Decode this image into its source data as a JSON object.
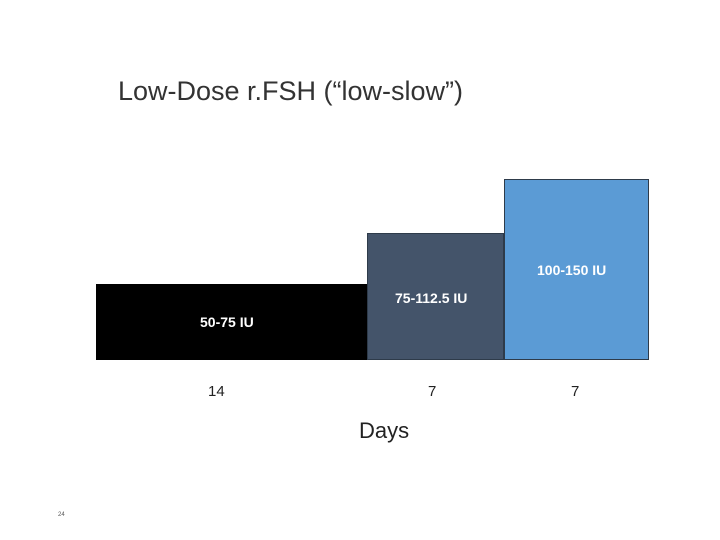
{
  "title": "Low-Dose r.FSH (“low-slow”)",
  "steps": [
    {
      "dose": "50-75 IU",
      "days": "14",
      "color": "#000000"
    },
    {
      "dose": "75-112.5 IU",
      "days": "7",
      "color": "#44546a"
    },
    {
      "dose": "100-150 IU",
      "days": "7",
      "color": "#5b9bd5"
    }
  ],
  "axis_label": "Days",
  "slide_number": "24"
}
